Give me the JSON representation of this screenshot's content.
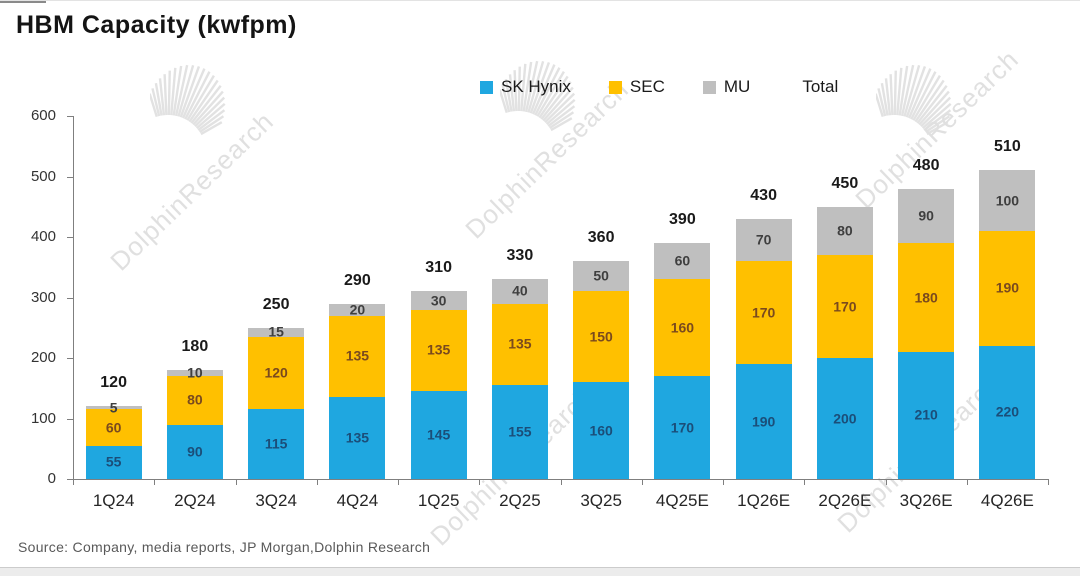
{
  "title": "HBM Capacity  (kwfpm)",
  "source": "Source:  Company,  media reports,  JP Morgan,Dolphin Research",
  "watermark": {
    "text": "DolphinResearch"
  },
  "legend": [
    {
      "label": "SK Hynix",
      "color": "#1FA7E0"
    },
    {
      "label": "SEC",
      "color": "#FFC000"
    },
    {
      "label": "MU",
      "color": "#BFBFBF"
    },
    {
      "label": "Total",
      "color": null
    }
  ],
  "chart_data": {
    "type": "bar",
    "stacked": true,
    "title": "HBM Capacity (kwfpm)",
    "xlabel": "",
    "ylabel": "",
    "ylim": [
      0,
      600
    ],
    "yticks": [
      0,
      100,
      200,
      300,
      400,
      500,
      600
    ],
    "grid": false,
    "legend_position": "top",
    "categories": [
      "1Q24",
      "2Q24",
      "3Q24",
      "4Q24",
      "1Q25",
      "2Q25",
      "3Q25",
      "4Q25E",
      "1Q26E",
      "2Q26E",
      "3Q26E",
      "4Q26E"
    ],
    "series": [
      {
        "name": "SK Hynix",
        "color": "#1FA7E0",
        "label_color": "#1b4e79",
        "values": [
          55,
          90,
          115,
          135,
          145,
          155,
          160,
          170,
          190,
          200,
          210,
          220
        ]
      },
      {
        "name": "SEC",
        "color": "#FFC000",
        "label_color": "#7a4a1e",
        "values": [
          60,
          80,
          120,
          135,
          135,
          135,
          150,
          160,
          170,
          170,
          180,
          190
        ]
      },
      {
        "name": "MU",
        "color": "#BFBFBF",
        "label_color": "#3f3f3f",
        "values": [
          5,
          10,
          15,
          20,
          30,
          40,
          50,
          60,
          70,
          80,
          90,
          100
        ]
      }
    ],
    "totals": [
      120,
      180,
      250,
      290,
      310,
      330,
      360,
      390,
      430,
      450,
      480,
      510
    ]
  }
}
